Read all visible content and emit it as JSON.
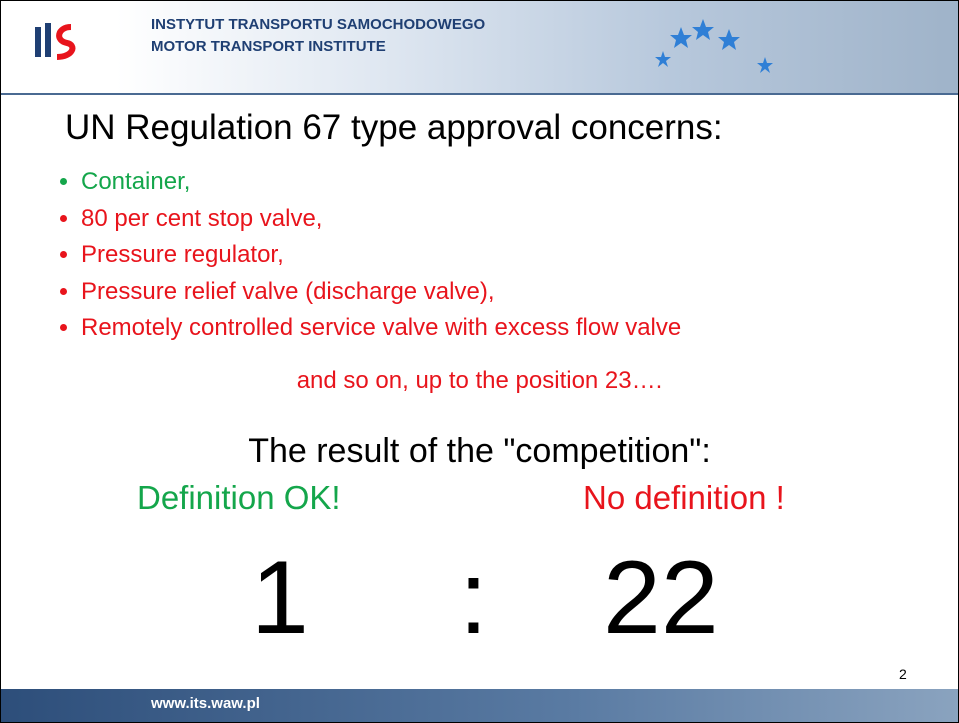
{
  "header": {
    "line1": "INSTYTUT TRANSPORTU SAMOCHODOWEGO",
    "line2": "MOTOR TRANSPORT INSTITUTE"
  },
  "title": "UN Regulation 67 type approval concerns:",
  "bullets": [
    "Container,",
    "80 per cent stop valve,",
    "Pressure regulator,",
    "Pressure relief valve (discharge valve),",
    "Remotely controlled service valve with excess flow valve"
  ],
  "continuation": "and so on, up to the position 23….",
  "result_heading": "The result of the \"competition\":",
  "left_label": "Definition OK!",
  "right_label": "No definition !",
  "score": {
    "left": "1",
    "separator": ":",
    "right": "22"
  },
  "page_number": "2",
  "footer": "www.its.waw.pl"
}
